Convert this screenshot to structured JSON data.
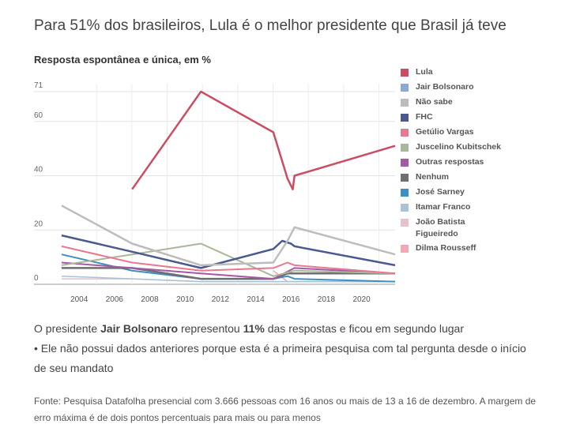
{
  "header": {
    "title": "Para 51% dos brasileiros, Lula é o melhor presidente que Brasil já teve",
    "subtitle": "Resposta espontânea e única, em %"
  },
  "note": {
    "line1_prefix": "O presidente ",
    "line1_name": "Jair Bolsonaro",
    "line1_mid": " representou ",
    "line1_value": "11%",
    "line1_suffix": " das respostas e ficou em segundo lugar",
    "line2": "• Ele não possui dados anteriores porque esta é a primeira pesquisa com tal pergunta desde o início de seu mandato"
  },
  "source": "Fonte: Pesquisa Datafolha presencial com 3.666 pessoas com 16 anos ou mais de 13 a 16 de dezembro. A margem de erro máxima é de dois pontos percentuais para mais ou para menos",
  "chart_data": {
    "type": "line",
    "title": "Para 51% dos brasileiros, Lula é o melhor presidente que Brasil já teve",
    "subtitle": "Resposta espontânea e única, em %",
    "xlabel": "",
    "ylabel": "",
    "xlim": [
      2002.2,
      2021.9
    ],
    "ylim": [
      0,
      71
    ],
    "yticks": [
      0,
      20,
      40,
      60,
      71
    ],
    "xticks": [
      2004,
      2006,
      2008,
      2010,
      2012,
      2014,
      2016,
      2018,
      2020
    ],
    "grid": true,
    "legend_position": "right",
    "series": [
      {
        "name": "Lula",
        "color": "#cc4d63",
        "width": 2.5,
        "points": [
          [
            2007.0,
            35
          ],
          [
            2010.9,
            71
          ],
          [
            2015.0,
            56
          ],
          [
            2015.8,
            39
          ],
          [
            2016.1,
            35
          ],
          [
            2016.2,
            40
          ],
          [
            2021.9,
            51
          ]
        ]
      },
      {
        "name": "Jair Bolsonaro",
        "color": "#8da8d8",
        "width": 1.5,
        "points": []
      },
      {
        "name": "Não sabe",
        "color": "#bdbdbd",
        "width": 2.5,
        "points": [
          [
            2003.0,
            29
          ],
          [
            2007.0,
            15
          ],
          [
            2010.9,
            7
          ],
          [
            2015.0,
            8
          ],
          [
            2015.8,
            16
          ],
          [
            2016.2,
            21
          ],
          [
            2021.9,
            11
          ]
        ]
      },
      {
        "name": "FHC",
        "color": "#4a5a8f",
        "width": 2.5,
        "points": [
          [
            2003.0,
            18
          ],
          [
            2007.0,
            12
          ],
          [
            2010.9,
            6
          ],
          [
            2015.0,
            13
          ],
          [
            2015.5,
            16
          ],
          [
            2016.0,
            15
          ],
          [
            2016.2,
            14
          ],
          [
            2021.9,
            7
          ]
        ]
      },
      {
        "name": "Getúlio Vargas",
        "color": "#e87890",
        "width": 2,
        "points": [
          [
            2003.0,
            14
          ],
          [
            2007.0,
            8
          ],
          [
            2010.9,
            5
          ],
          [
            2015.0,
            6
          ],
          [
            2015.8,
            8
          ],
          [
            2016.2,
            7
          ],
          [
            2021.9,
            4
          ]
        ]
      },
      {
        "name": "Juscelino Kubitschek",
        "color": "#a9b89a",
        "width": 2,
        "points": [
          [
            2003.0,
            7
          ],
          [
            2007.0,
            11
          ],
          [
            2010.9,
            15
          ],
          [
            2015.0,
            3
          ],
          [
            2016.2,
            5
          ],
          [
            2021.9,
            4
          ]
        ]
      },
      {
        "name": "Outras respostas",
        "color": "#a559a5",
        "width": 2,
        "points": [
          [
            2003.0,
            8
          ],
          [
            2007.0,
            6
          ],
          [
            2010.9,
            4
          ],
          [
            2015.0,
            2
          ],
          [
            2016.2,
            6
          ],
          [
            2021.9,
            4
          ]
        ]
      },
      {
        "name": "Nenhum",
        "color": "#6e6e6e",
        "width": 2.5,
        "points": [
          [
            2003.0,
            6
          ],
          [
            2007.0,
            6
          ],
          [
            2010.9,
            2
          ],
          [
            2015.0,
            2
          ],
          [
            2015.8,
            4
          ],
          [
            2016.2,
            4
          ],
          [
            2021.9,
            4
          ]
        ]
      },
      {
        "name": "José Sarney",
        "color": "#3d8fc4",
        "width": 2,
        "points": [
          [
            2003.0,
            11
          ],
          [
            2007.0,
            5
          ],
          [
            2010.9,
            2
          ],
          [
            2015.0,
            2
          ],
          [
            2015.8,
            3
          ],
          [
            2016.2,
            2
          ],
          [
            2021.9,
            1
          ]
        ]
      },
      {
        "name": "Itamar Franco",
        "color": "#a8c2d6",
        "width": 1.5,
        "points": [
          [
            2003.0,
            3
          ],
          [
            2007.0,
            2
          ],
          [
            2010.9,
            1
          ],
          [
            2015.0,
            1
          ],
          [
            2016.2,
            1
          ],
          [
            2021.9,
            1
          ]
        ]
      },
      {
        "name": "João Batista Figueiredo",
        "color": "#e3c3c7",
        "width": 1.5,
        "points": [
          [
            2003.0,
            2
          ],
          [
            2007.0,
            2
          ],
          [
            2010.9,
            1
          ],
          [
            2015.0,
            1
          ],
          [
            2016.2,
            1
          ],
          [
            2021.9,
            1
          ]
        ]
      },
      {
        "name": "Dilma Rousseff",
        "color": "#f2a8b4",
        "width": 1.5,
        "points": [
          [
            2015.0,
            5
          ],
          [
            2015.8,
            1
          ],
          [
            2016.2,
            1
          ],
          [
            2021.9,
            1
          ]
        ]
      }
    ]
  }
}
